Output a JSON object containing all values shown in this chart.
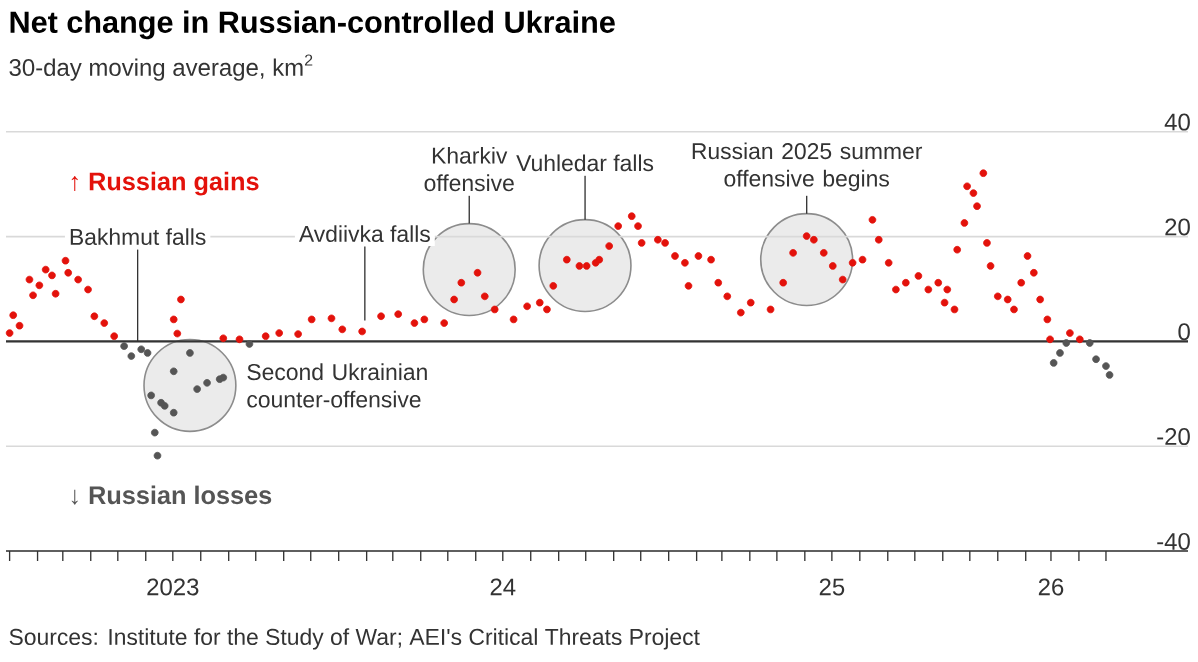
{
  "chart_data": {
    "type": "scatter",
    "title": "Net change in Russian-controlled Ukraine",
    "subtitle": "30-day moving average, km$^{2}$",
    "marker": "circle",
    "grid": "y",
    "xlim": [
      "2022-12-28",
      "2026-07-31"
    ],
    "ylim": [
      -40,
      40
    ],
    "yticks": [
      -40,
      -20,
      0,
      20,
      40
    ],
    "xticks": [
      {
        "value": "2023-01-01",
        "label": null
      },
      {
        "value": "2023-02-01",
        "label": null
      },
      {
        "value": "2023-03-01",
        "label": null
      },
      {
        "value": "2023-04-01",
        "label": null
      },
      {
        "value": "2023-05-01",
        "label": null
      },
      {
        "value": "2023-06-01",
        "label": null
      },
      {
        "value": "2023-07-01",
        "label": "2023"
      },
      {
        "value": "2023-08-01",
        "label": null
      },
      {
        "value": "2023-09-01",
        "label": null
      },
      {
        "value": "2023-10-01",
        "label": null
      },
      {
        "value": "2023-11-01",
        "label": null
      },
      {
        "value": "2023-12-01",
        "label": null
      },
      {
        "value": "2024-01-01",
        "label": null
      },
      {
        "value": "2024-02-01",
        "label": null
      },
      {
        "value": "2024-03-01",
        "label": null
      },
      {
        "value": "2024-04-01",
        "label": null
      },
      {
        "value": "2024-05-01",
        "label": null
      },
      {
        "value": "2024-06-01",
        "label": null
      },
      {
        "value": "2024-07-01",
        "label": "24"
      },
      {
        "value": "2024-08-01",
        "label": null
      },
      {
        "value": "2024-09-01",
        "label": null
      },
      {
        "value": "2024-10-01",
        "label": null
      },
      {
        "value": "2024-11-01",
        "label": null
      },
      {
        "value": "2024-12-01",
        "label": null
      },
      {
        "value": "2025-01-01",
        "label": null
      },
      {
        "value": "2025-02-01",
        "label": null
      },
      {
        "value": "2025-03-01",
        "label": null
      },
      {
        "value": "2025-04-01",
        "label": null
      },
      {
        "value": "2025-05-01",
        "label": null
      },
      {
        "value": "2025-06-01",
        "label": null
      },
      {
        "value": "2025-07-01",
        "label": "25"
      },
      {
        "value": "2025-08-01",
        "label": null
      },
      {
        "value": "2025-09-01",
        "label": null
      },
      {
        "value": "2025-10-01",
        "label": null
      },
      {
        "value": "2025-11-01",
        "label": null
      },
      {
        "value": "2025-12-01",
        "label": null
      },
      {
        "value": "2026-01-01",
        "label": null
      },
      {
        "value": "2026-02-01",
        "label": null
      },
      {
        "value": "2026-03-01",
        "label": "26"
      },
      {
        "value": "2026-04-01",
        "label": null
      },
      {
        "value": "2026-05-01",
        "label": null
      }
    ],
    "ref_lines": [
      {
        "axis": "y",
        "value": 0,
        "color": "#333333"
      }
    ],
    "series": [
      {
        "name": "↑ Russian gains",
        "color": "#e3120b",
        "x": [
          "2023-01-01",
          "2023-01-05",
          "2023-01-12",
          "2023-01-23",
          "2023-01-27",
          "2023-02-03",
          "2023-02-10",
          "2023-02-17",
          "2023-02-21",
          "2023-03-04",
          "2023-03-07",
          "2023-03-18",
          "2023-03-29",
          "2023-04-05",
          "2023-04-16",
          "2023-04-27",
          "2023-07-02",
          "2023-07-06",
          "2023-07-10",
          "2023-08-26",
          "2023-09-13",
          "2023-10-12",
          "2023-10-27",
          "2023-11-17",
          "2023-12-02",
          "2023-12-24",
          "2024-01-05",
          "2024-01-27",
          "2024-02-17",
          "2024-03-07",
          "2024-03-25",
          "2024-04-05",
          "2024-04-27",
          "2024-05-08",
          "2024-05-16",
          "2024-06-03",
          "2024-06-11",
          "2024-06-22",
          "2024-07-13",
          "2024-07-28",
          "2024-08-11",
          "2024-08-19",
          "2024-08-26",
          "2024-09-10",
          "2024-09-24",
          "2024-10-02",
          "2024-10-12",
          "2024-10-16",
          "2024-10-27",
          "2024-11-06",
          "2024-11-21",
          "2024-11-28",
          "2024-12-02",
          "2024-12-20",
          "2024-12-28",
          "2025-01-08",
          "2025-01-19",
          "2025-01-23",
          "2025-02-03",
          "2025-02-17",
          "2025-02-25",
          "2025-03-07",
          "2025-03-22",
          "2025-04-02",
          "2025-04-24",
          "2025-05-08",
          "2025-05-19",
          "2025-06-03",
          "2025-06-11",
          "2025-06-22",
          "2025-07-02",
          "2025-07-13",
          "2025-07-24",
          "2025-08-04",
          "2025-08-15",
          "2025-08-22",
          "2025-09-02",
          "2025-09-10",
          "2025-09-21",
          "2025-10-05",
          "2025-10-16",
          "2025-10-27",
          "2025-11-03",
          "2025-11-06",
          "2025-11-14",
          "2025-11-17",
          "2025-11-25",
          "2025-11-28",
          "2025-12-05",
          "2025-12-09",
          "2025-12-16",
          "2025-12-20",
          "2025-12-24",
          "2026-01-01",
          "2026-01-12",
          "2026-01-19",
          "2026-01-27",
          "2026-02-03",
          "2026-02-10",
          "2026-02-17",
          "2026-02-25",
          "2026-02-28",
          "2026-03-22",
          "2026-04-02"
        ],
        "values": [
          1.6,
          5,
          3,
          11.8,
          8.8,
          10.7,
          13.7,
          12.6,
          9.1,
          15.4,
          13.1,
          11.8,
          9.9,
          4.8,
          3.5,
          1,
          4.2,
          1.5,
          8,
          0.6,
          0.4,
          1,
          1.6,
          1.4,
          4.2,
          4.4,
          2.3,
          1.9,
          4.8,
          5.2,
          3.5,
          4.2,
          3.5,
          8,
          11.2,
          13.1,
          8.6,
          6.1,
          4.2,
          6.7,
          7.4,
          6.1,
          10.6,
          15.6,
          14.4,
          14.4,
          15,
          15.6,
          18.2,
          22,
          23.9,
          22,
          18.8,
          19.4,
          18.8,
          16.3,
          15,
          10.6,
          16.3,
          15.6,
          11.2,
          8.6,
          5.5,
          7.4,
          6.1,
          11.2,
          16.9,
          20.1,
          19.4,
          16.9,
          14.4,
          11.8,
          15,
          15.6,
          23.2,
          19.4,
          15,
          9.9,
          11.2,
          12.5,
          9.9,
          11.2,
          7.4,
          9.9,
          6.1,
          17.5,
          22.6,
          29.6,
          28.3,
          25.8,
          32.1,
          18.8,
          14.4,
          8.6,
          8,
          6.1,
          11.2,
          16.3,
          13.1,
          8,
          4.2,
          0.4,
          1.6,
          0.4
        ]
      },
      {
        "name": "↓ Russian losses",
        "color": "#555555",
        "x": [
          "2023-05-08",
          "2023-05-16",
          "2023-05-27",
          "2023-06-03",
          "2023-06-07",
          "2023-06-11",
          "2023-06-14",
          "2023-06-18",
          "2023-06-22",
          "2023-07-02",
          "2023-07-02",
          "2023-07-20",
          "2023-07-28",
          "2023-08-08",
          "2023-08-22",
          "2023-08-26",
          "2023-09-24",
          "2026-03-04",
          "2026-03-11",
          "2026-03-18",
          "2026-04-13",
          "2026-04-20",
          "2026-05-01",
          "2026-05-05"
        ],
        "values": [
          -0.9,
          -2.8,
          -1.5,
          -2.2,
          -10.3,
          -17.4,
          -21.8,
          -11.7,
          -12.3,
          -13.6,
          -5.7,
          -2.2,
          -9.1,
          -7.9,
          -7.2,
          -6.9,
          -0.5,
          -4.1,
          -2.2,
          -0.3,
          -0.3,
          -3.4,
          -4.7,
          -6.4
        ]
      }
    ],
    "annotations": [
      {
        "text": "Bakhmut falls",
        "x": "2023-05-23",
        "y": 0
      },
      {
        "text": "Second Ukrainian counter-offensive",
        "x": "2023-07-20",
        "y": -8.4
      },
      {
        "text": "Avdiivka falls",
        "x": "2024-01-30",
        "y": 4
      },
      "Kharkiv offensive",
      "Vuhledar falls",
      "Russian 2025 summer offensive begins",
      "Sources: Institute for the Study of War; AEI's Critical Threats Project"
    ]
  }
}
